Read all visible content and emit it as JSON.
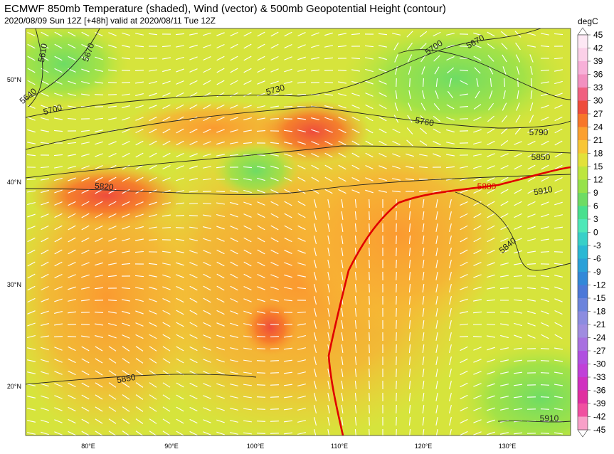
{
  "header": {
    "title": "ECMWF 850mb Temperature (shaded), Wind (vector) & 500mb Geopotential Height (contour)",
    "subtitle": "2020/08/09 Sun 12Z [+48h] valid at 2020/08/11 Tue 12Z"
  },
  "colorbar": {
    "unit": "degC",
    "ticks": [
      45,
      42,
      39,
      36,
      33,
      30,
      27,
      24,
      21,
      18,
      15,
      12,
      9,
      6,
      3,
      0,
      -3,
      -6,
      -9,
      -12,
      -15,
      -18,
      -21,
      -24,
      -27,
      -30,
      -33,
      -36,
      -39,
      -42,
      -45
    ],
    "colors": [
      "#fde8f4",
      "#fbd0e8",
      "#f7b0d8",
      "#f290c0",
      "#f06080",
      "#ee4c3c",
      "#f7762a",
      "#fba030",
      "#f8c636",
      "#e2e13a",
      "#bde63e",
      "#96e24a",
      "#6edc64",
      "#48e08e",
      "#4ee8b8",
      "#38d0c8",
      "#2ab8d4",
      "#2aa0d8",
      "#3288d8",
      "#4c78d8",
      "#6c84dc",
      "#8c8ce0",
      "#a08ce0",
      "#a870e0",
      "#b050e0",
      "#c040d8",
      "#d030c0",
      "#e030a0",
      "#f050a0",
      "#f8a0c8"
    ]
  },
  "map": {
    "lon_labels": [
      "80°E",
      "90°E",
      "100°E",
      "110°E",
      "120°E",
      "130°E"
    ],
    "lat_labels": [
      "50°N",
      "40°N",
      "30°N",
      "20°N"
    ],
    "contour_labels": [
      5610,
      5670,
      5640,
      5700,
      5730,
      5760,
      5700,
      5670,
      5790,
      5850,
      5820,
      5880,
      5910,
      5840,
      5850,
      5910
    ]
  }
}
